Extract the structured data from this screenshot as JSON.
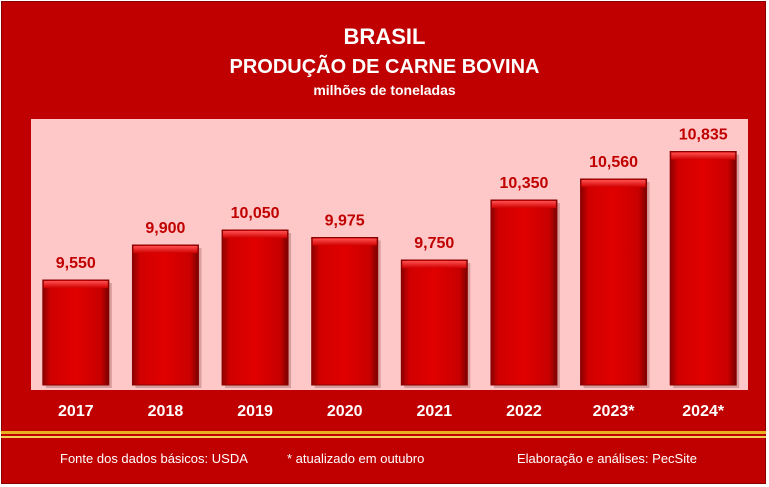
{
  "chart_data": {
    "type": "bar",
    "title": "BRASIL",
    "subtitle": "PRODUÇÃO DE CARNE BOVINA",
    "unit": "milhões de toneladas",
    "categories": [
      "2017",
      "2018",
      "2019",
      "2020",
      "2021",
      "2022",
      "2023*",
      "2024*"
    ],
    "values": [
      9.55,
      9.9,
      10.05,
      9.975,
      9.75,
      10.35,
      10.56,
      10.835
    ],
    "data_labels": [
      "9,550",
      "9,900",
      "10,050",
      "9,975",
      "9,750",
      "10,350",
      "10,560",
      "10,835"
    ],
    "ylim": [
      8.5,
      11.0
    ],
    "grid": false,
    "legend": "none",
    "colors": {
      "background": "#c00000",
      "plot_area": "#ffc8c8",
      "bar_fill": "#d10000",
      "bar_dark": "#8a0000",
      "bar_light": "#ff2a2a",
      "label_text": "#c00000",
      "axis_text": "#ffffff",
      "stripe": "#e8b020"
    }
  },
  "footer": {
    "source": "Fonte dos dados básicos: USDA",
    "note": "* atualizado em outubro",
    "credit": "Elaboração e análises: PecSite"
  }
}
